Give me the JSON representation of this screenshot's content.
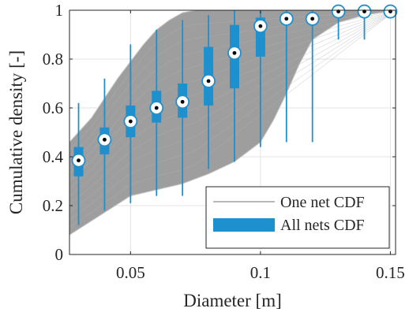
{
  "chart_data": {
    "type": "box",
    "xlabel": "Diameter [m]",
    "ylabel": "Cumulative density [-]",
    "xlim": [
      0.0265,
      0.152
    ],
    "ylim": [
      0,
      1
    ],
    "x_ticks": [
      0.05,
      0.1,
      0.15
    ],
    "x_tick_labels": [
      "0.05",
      "0.1",
      "0.15"
    ],
    "y_ticks": [
      0,
      0.2,
      0.4,
      0.6,
      0.8,
      1
    ],
    "y_tick_labels": [
      "0",
      "0.2",
      "0.4",
      "0.6",
      "0.8",
      "1"
    ],
    "grid": true,
    "legend_position": "bottom-right",
    "legend": [
      {
        "label": "One net CDF",
        "style": "line",
        "color": "#a0a0a0"
      },
      {
        "label": "All nets CDF",
        "style": "box",
        "color": "#1e90cd"
      }
    ],
    "colors": {
      "box": "#1e90cd",
      "band": "#9e9e9e",
      "band_edge": "#c4c4c4",
      "median_marker": "#ffffff"
    },
    "band": {
      "lower": [
        [
          0.0265,
          0.08
        ],
        [
          0.05,
          0.24
        ],
        [
          0.07,
          0.29
        ],
        [
          0.08,
          0.33
        ],
        [
          0.09,
          0.38
        ],
        [
          0.1,
          0.46
        ],
        [
          0.105,
          0.55
        ],
        [
          0.11,
          0.66
        ],
        [
          0.115,
          0.78
        ],
        [
          0.12,
          0.88
        ],
        [
          0.13,
          0.95
        ],
        [
          0.14,
          0.98
        ],
        [
          0.152,
          1.0
        ]
      ],
      "upper": [
        [
          0.0265,
          0.46
        ],
        [
          0.035,
          0.56
        ],
        [
          0.04,
          0.64
        ],
        [
          0.045,
          0.72
        ],
        [
          0.05,
          0.79
        ],
        [
          0.055,
          0.86
        ],
        [
          0.06,
          0.92
        ],
        [
          0.065,
          0.96
        ],
        [
          0.07,
          0.99
        ],
        [
          0.075,
          1.0
        ],
        [
          0.152,
          1.0
        ]
      ]
    },
    "boxes": [
      {
        "x": 0.03,
        "whisker_low": 0.12,
        "q1": 0.32,
        "median": 0.385,
        "q3": 0.44,
        "whisker_high": 0.62
      },
      {
        "x": 0.04,
        "whisker_low": 0.18,
        "q1": 0.41,
        "median": 0.47,
        "q3": 0.52,
        "whisker_high": 0.72
      },
      {
        "x": 0.05,
        "whisker_low": 0.21,
        "q1": 0.48,
        "median": 0.545,
        "q3": 0.61,
        "whisker_high": 0.86
      },
      {
        "x": 0.06,
        "whisker_low": 0.24,
        "q1": 0.54,
        "median": 0.6,
        "q3": 0.67,
        "whisker_high": 0.92
      },
      {
        "x": 0.07,
        "whisker_low": 0.24,
        "q1": 0.56,
        "median": 0.625,
        "q3": 0.7,
        "whisker_high": 0.96
      },
      {
        "x": 0.08,
        "whisker_low": 0.35,
        "q1": 0.61,
        "median": 0.71,
        "q3": 0.85,
        "whisker_high": 0.98
      },
      {
        "x": 0.09,
        "whisker_low": 0.38,
        "q1": 0.68,
        "median": 0.825,
        "q3": 0.94,
        "whisker_high": 1.0
      },
      {
        "x": 0.1,
        "whisker_low": 0.44,
        "q1": 0.81,
        "median": 0.935,
        "q3": 0.97,
        "whisker_high": 1.0
      },
      {
        "x": 0.11,
        "whisker_low": 0.46,
        "q1": 0.955,
        "median": 0.965,
        "q3": 0.98,
        "whisker_high": 1.0
      },
      {
        "x": 0.12,
        "whisker_low": 0.46,
        "q1": 0.955,
        "median": 0.965,
        "q3": 0.98,
        "whisker_high": 1.0
      },
      {
        "x": 0.13,
        "whisker_low": 0.88,
        "q1": 0.99,
        "median": 0.995,
        "q3": 1.0,
        "whisker_high": 1.0
      },
      {
        "x": 0.14,
        "whisker_low": 0.88,
        "q1": 0.99,
        "median": 0.995,
        "q3": 1.0,
        "whisker_high": 1.0
      },
      {
        "x": 0.15,
        "whisker_low": 0.995,
        "q1": 0.995,
        "median": 0.995,
        "q3": 1.0,
        "whisker_high": 1.0
      }
    ]
  }
}
